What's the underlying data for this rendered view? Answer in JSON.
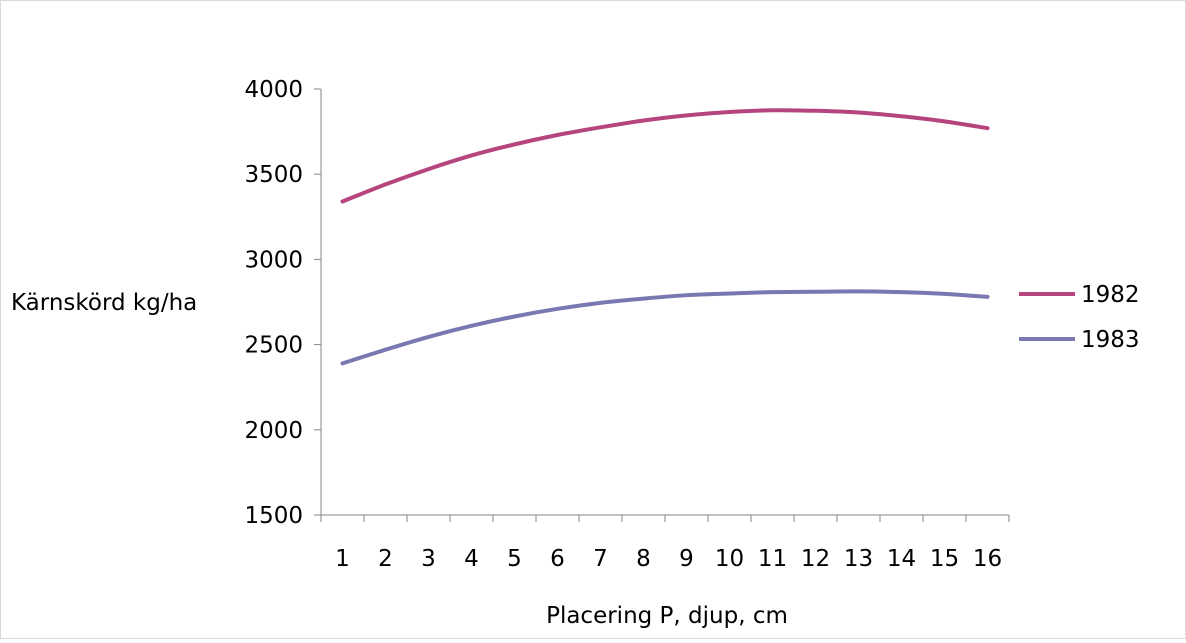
{
  "chart_data": {
    "type": "line",
    "title": "",
    "xlabel": "Placering P, djup, cm",
    "ylabel": "Kärnskörd kg/ha",
    "categories": [
      "1",
      "2",
      "3",
      "4",
      "5",
      "6",
      "7",
      "8",
      "9",
      "10",
      "11",
      "12",
      "13",
      "14",
      "15",
      "16"
    ],
    "ylim": [
      1500,
      4000
    ],
    "yticks": [
      1500,
      2000,
      2500,
      3000,
      3500,
      4000
    ],
    "grid": false,
    "legend_position": "right",
    "series": [
      {
        "name": "1982",
        "color": "#b5457c",
        "values": [
          3340,
          3440,
          3530,
          3610,
          3675,
          3730,
          3775,
          3815,
          3845,
          3865,
          3875,
          3872,
          3862,
          3840,
          3810,
          3770
        ]
      },
      {
        "name": "1983",
        "color": "#7a78b0",
        "values": [
          2390,
          2470,
          2545,
          2610,
          2665,
          2710,
          2745,
          2770,
          2790,
          2800,
          2808,
          2810,
          2812,
          2808,
          2798,
          2780
        ]
      }
    ]
  }
}
